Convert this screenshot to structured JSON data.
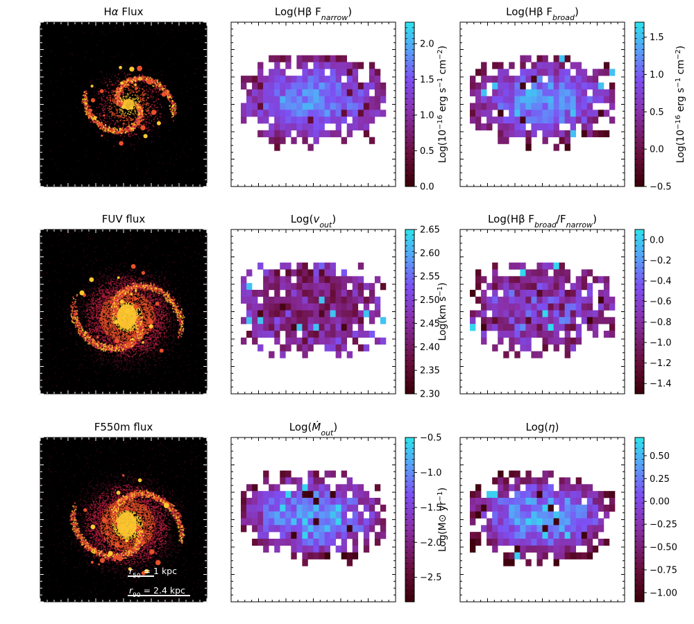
{
  "figure": {
    "description_free": true,
    "colormap": [
      "#3a0008",
      "#6a0e3c",
      "#8a2fa8",
      "#7d4ff2",
      "#5a9cf8",
      "#2de4ec"
    ],
    "image_panels": [
      {
        "title": "Hα Flux",
        "kind": "spiral-compact",
        "colors": [
          "#000000",
          "#4a0c1e",
          "#b31e3e",
          "#e8502a",
          "#ffc830"
        ]
      },
      {
        "title": "FUV flux",
        "kind": "spiral-extended",
        "colors": [
          "#000000",
          "#4a0c1e",
          "#b31e3e",
          "#e8502a",
          "#ffc830"
        ]
      },
      {
        "title": "F550m flux",
        "kind": "spiral-extended",
        "colors": [
          "#000000",
          "#4a0c1e",
          "#b31e3e",
          "#e8502a",
          "#ffc830"
        ],
        "scale_bars": [
          {
            "label": "r50 = 1 kpc",
            "prefix": "r",
            "sub": "50",
            "suffix": " = 1 kpc",
            "kpc": 1.0
          },
          {
            "label": "r90 = 2.4 kpc",
            "prefix": "r",
            "sub": "90",
            "suffix": " = 2.4 kpc",
            "kpc": 2.4
          }
        ]
      }
    ]
  },
  "chart_data": [
    {
      "type": "heatmap",
      "id": "hb-narrow",
      "title": "Log(Hβ F_narrow)",
      "title_main": "Log(Hβ F",
      "title_sub": "narrow",
      "title_end": ")",
      "colorbar": {
        "min": 0.0,
        "max": 2.3,
        "ticks": [
          0.0,
          0.5,
          1.0,
          1.5,
          2.0
        ],
        "tick_labels": [
          "0.0",
          "0.5",
          "1.0",
          "1.5",
          "2.0"
        ],
        "label": "Log(10^-16 erg s^-1 cm^-2)"
      },
      "value_range_typical": [
        0.4,
        2.0
      ]
    },
    {
      "type": "heatmap",
      "id": "hb-broad",
      "title": "Log(Hβ F_broad)",
      "title_main": "Log(Hβ F",
      "title_sub": "broad",
      "title_end": ")",
      "colorbar": {
        "min": -0.5,
        "max": 1.7,
        "ticks": [
          -0.5,
          0.0,
          0.5,
          1.0,
          1.5
        ],
        "tick_labels": [
          "−0.5",
          "0.0",
          "0.5",
          "1.0",
          "1.5"
        ],
        "label": "Log(10^-16 erg s^-1 cm^-2)"
      },
      "value_range_typical": [
        -0.4,
        1.5
      ]
    },
    {
      "type": "heatmap",
      "id": "v-out",
      "title": "Log(v_out)",
      "title_main": "Log(",
      "title_sub": "out",
      "title_var": "v",
      "title_end": ")",
      "colorbar": {
        "min": 2.3,
        "max": 2.65,
        "ticks": [
          2.3,
          2.35,
          2.4,
          2.45,
          2.5,
          2.55,
          2.6,
          2.65
        ],
        "tick_labels": [
          "2.30",
          "2.35",
          "2.40",
          "2.45",
          "2.50",
          "2.55",
          "2.60",
          "2.65"
        ],
        "label": "Log(km s^-1)"
      },
      "value_range_typical": [
        2.32,
        2.62
      ]
    },
    {
      "type": "heatmap",
      "id": "broad-narrow-ratio",
      "title": "Log(Hβ F_broad/F_narrow)",
      "title_main": "Log(Hβ F",
      "title_sub": "broad",
      "title_mid": "/F",
      "title_sub2": "narrow",
      "title_end": ")",
      "colorbar": {
        "min": -1.5,
        "max": 0.1,
        "ticks": [
          -1.4,
          -1.2,
          -1.0,
          -0.8,
          -0.6,
          -0.4,
          -0.2,
          0.0
        ],
        "tick_labels": [
          "−1.4",
          "−1.2",
          "−1.0",
          "−0.8",
          "−0.6",
          "−0.4",
          "−0.2",
          "0.0"
        ],
        "label": ""
      },
      "value_range_typical": [
        -1.45,
        0.05
      ]
    },
    {
      "type": "heatmap",
      "id": "mdot-out",
      "title": "Log(Ṁ_out)",
      "title_main": "Log(",
      "title_var": "Ṁ",
      "title_sub": "out",
      "title_end": ")",
      "colorbar": {
        "min": -2.85,
        "max": -0.5,
        "ticks": [
          -2.5,
          -2.0,
          -1.5,
          -1.0,
          -0.5
        ],
        "tick_labels": [
          "−2.5",
          "−2.0",
          "−1.5",
          "−1.0",
          "−0.5"
        ],
        "label": "Log(M⊙ yr^-1)"
      },
      "value_range_typical": [
        -2.8,
        -0.6
      ]
    },
    {
      "type": "heatmap",
      "id": "eta",
      "title": "Log(η)",
      "title_main": "Log(",
      "title_var": "η",
      "title_end": ")",
      "colorbar": {
        "min": -1.1,
        "max": 0.7,
        "ticks": [
          -1.0,
          -0.75,
          -0.5,
          -0.25,
          0.0,
          0.25,
          0.5
        ],
        "tick_labels": [
          "−1.00",
          "−0.75",
          "−0.50",
          "−0.25",
          "0.00",
          "0.25",
          "0.50"
        ],
        "label": ""
      },
      "value_range_typical": [
        -1.05,
        0.6
      ]
    }
  ]
}
